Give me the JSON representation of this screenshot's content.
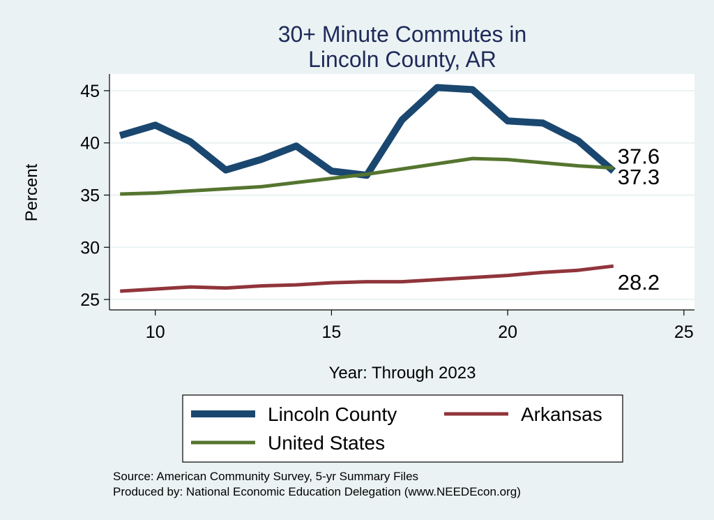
{
  "chart_data": {
    "type": "line",
    "title_lines": [
      "30+ Minute Commutes in",
      "Lincoln County, AR"
    ],
    "xlabel": "Year: Through 2023",
    "ylabel": "Percent",
    "xlim": [
      8.7,
      25.3
    ],
    "ylim": [
      24.0,
      46.6
    ],
    "x_ticks": [
      10,
      15,
      20,
      25
    ],
    "y_ticks": [
      25,
      30,
      35,
      40,
      45
    ],
    "grid": true,
    "legend_position": "bottom",
    "series": [
      {
        "name": "Lincoln County",
        "color": "#1a476f",
        "x": [
          9,
          10,
          11,
          12,
          13,
          14,
          15,
          16,
          17,
          18,
          19,
          20,
          21,
          22,
          23
        ],
        "values": [
          40.7,
          41.7,
          40.1,
          37.4,
          38.4,
          39.7,
          37.3,
          36.9,
          42.2,
          45.3,
          45.1,
          42.1,
          41.9,
          40.2,
          37.3
        ],
        "end_label": "37.3"
      },
      {
        "name": "Arkansas",
        "color": "#90353b",
        "x": [
          9,
          10,
          11,
          12,
          13,
          14,
          15,
          16,
          17,
          18,
          19,
          20,
          21,
          22,
          23
        ],
        "values": [
          25.8,
          26.0,
          26.2,
          26.1,
          26.3,
          26.4,
          26.6,
          26.7,
          26.7,
          26.9,
          27.1,
          27.3,
          27.6,
          27.8,
          28.2
        ],
        "end_label": "28.2"
      },
      {
        "name": "United States",
        "color": "#55752f",
        "x": [
          9,
          10,
          11,
          12,
          13,
          14,
          15,
          16,
          17,
          18,
          19,
          20,
          21,
          22,
          23
        ],
        "values": [
          35.1,
          35.2,
          35.4,
          35.6,
          35.8,
          36.2,
          36.6,
          37.0,
          37.5,
          38.0,
          38.5,
          38.4,
          38.1,
          37.8,
          37.6
        ],
        "end_label": "37.6"
      }
    ]
  },
  "footer": {
    "source": "Source: American Community Survey, 5-yr Summary Files",
    "produced_by": "Produced by: National Economic Education Delegation (www.NEEDEcon.org)"
  }
}
